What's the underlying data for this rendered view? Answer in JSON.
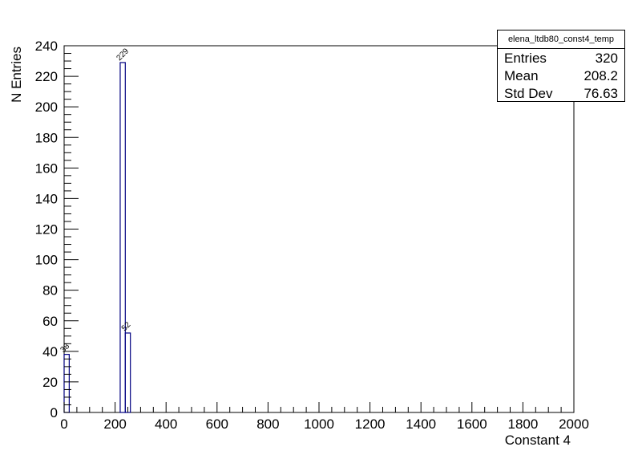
{
  "chart_data": {
    "type": "bar",
    "title": "",
    "xlabel": "Constant 4",
    "ylabel": "N Entries",
    "xlim": [
      0,
      2000
    ],
    "ylim": [
      0,
      240
    ],
    "x_ticks": [
      "0",
      "200",
      "400",
      "600",
      "800",
      "1000",
      "1200",
      "1400",
      "1600",
      "1800",
      "2000"
    ],
    "y_ticks": [
      "0",
      "20",
      "40",
      "60",
      "80",
      "100",
      "120",
      "140",
      "160",
      "180",
      "200",
      "220",
      "240"
    ],
    "bins": [
      {
        "x_low": 0,
        "x_high": 20,
        "value": 38,
        "label": "38"
      },
      {
        "x_low": 220,
        "x_high": 240,
        "value": 229,
        "label": "229"
      },
      {
        "x_low": 240,
        "x_high": 260,
        "value": 52,
        "label": "52"
      }
    ],
    "bar_color": "#000080",
    "grid": false,
    "stats": {
      "name": "elena_ltdb80_const4_temp",
      "rows": [
        {
          "label": "Entries",
          "value": "320"
        },
        {
          "label": "Mean",
          "value": "208.2"
        },
        {
          "label": "Std Dev",
          "value": "76.63"
        }
      ]
    }
  }
}
